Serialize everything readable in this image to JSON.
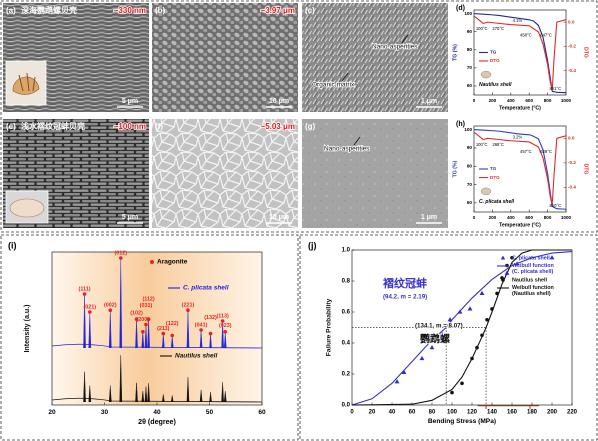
{
  "panels": [
    {
      "label": "(a)",
      "title": "深海鹦鹉螺贝壳",
      "measure": "~330 nm",
      "scale": "5 μm"
    },
    {
      "label": "(b)",
      "measure": "~3.97 μm",
      "scale": "10 μm"
    },
    {
      "label": "(c)",
      "annotations": [
        "Nano-asperities",
        "Organic matrix"
      ],
      "scale": "1 μm"
    },
    {
      "label": "(e)",
      "title": "浅水褶纹冠蚌贝壳",
      "measure": "~100 nm",
      "scale": "5 μm"
    },
    {
      "label": "(f)",
      "measure": "~5.03 μm",
      "scale": "10 μm"
    },
    {
      "label": "(g)",
      "annotations": [
        "Nano-asperities"
      ],
      "scale": "1 μm"
    }
  ],
  "chart_data": [
    {
      "type": "line",
      "label": "(d)",
      "xlabel": "Temperature (°C)",
      "ylabel": "TG (%)",
      "y2label": "DTG",
      "xlim": [
        0,
        1000
      ],
      "xticks": [
        0,
        200,
        400,
        600,
        800,
        1000
      ],
      "ylim": [
        55,
        102
      ],
      "yticks": [
        60,
        70,
        80,
        90,
        100
      ],
      "y2lim": [
        -0.6,
        0.1
      ],
      "y2ticks": [
        {
          "value": 0,
          "label": "0.0"
        },
        -0.2,
        -0.4
      ],
      "sample": "Nautilus shell",
      "annotations": [
        "4.1%",
        "100°C",
        "270°C",
        "458°C",
        "647°C",
        "851°C"
      ],
      "series": [
        {
          "name": "TG",
          "color": "#1d2a8c",
          "x": [
            0,
            100,
            200,
            270,
            400,
            458,
            600,
            647,
            700,
            750,
            800,
            851,
            900,
            1000
          ],
          "values": [
            100,
            99.7,
            99.3,
            99,
            98,
            97.6,
            96.6,
            95.9,
            93.5,
            87,
            74,
            57,
            56.5,
            56.3
          ]
        },
        {
          "name": "DTG",
          "color": "#e02a2a",
          "axis": "y2",
          "x": [
            0,
            50,
            100,
            150,
            270,
            400,
            600,
            700,
            750,
            800,
            830,
            851,
            870,
            900,
            1000
          ],
          "values": [
            0.05,
            0.02,
            -0.01,
            0,
            -0.01,
            -0.02,
            -0.03,
            -0.08,
            -0.18,
            -0.35,
            -0.5,
            -0.55,
            -0.3,
            0,
            0.02
          ]
        }
      ]
    },
    {
      "type": "line",
      "label": "(h)",
      "xlabel": "Temperature (°C)",
      "ylabel": "TG (%)",
      "y2label": "DTG",
      "xlim": [
        0,
        1000
      ],
      "xticks": [
        0,
        200,
        400,
        600,
        800,
        1000
      ],
      "ylim": [
        55,
        102
      ],
      "yticks": [
        60,
        70,
        80,
        90,
        100
      ],
      "y2lim": [
        -0.6,
        0.1
      ],
      "y2ticks": [
        {
          "value": 0,
          "label": "0.0"
        },
        -0.2,
        -0.4
      ],
      "sample": "C. plicata shell",
      "annotations": [
        "3.2%",
        "100°C",
        "268°C",
        "457°C",
        "628°C",
        "850°C"
      ],
      "series": [
        {
          "name": "TG",
          "color": "#2a3bd0",
          "x": [
            0,
            100,
            200,
            268,
            400,
            457,
            600,
            628,
            700,
            750,
            800,
            850,
            900,
            1000
          ],
          "values": [
            100,
            99.8,
            99.4,
            99.2,
            98.3,
            97.8,
            97.2,
            96.8,
            95,
            89,
            76,
            58,
            56.8,
            56.5
          ]
        },
        {
          "name": "DTG",
          "color": "#e02a2a",
          "axis": "y2",
          "x": [
            0,
            50,
            100,
            150,
            268,
            400,
            600,
            700,
            750,
            800,
            830,
            850,
            870,
            900,
            1000
          ],
          "values": [
            0.05,
            0.02,
            -0.01,
            0,
            -0.01,
            -0.02,
            -0.03,
            -0.07,
            -0.16,
            -0.33,
            -0.48,
            -0.54,
            -0.3,
            0,
            0.02
          ]
        }
      ]
    },
    {
      "type": "spectrum",
      "label": "(i)",
      "xlabel": "2θ (degree)",
      "ylabel": "Intensity (a.u.)",
      "xlim": [
        20,
        60
      ],
      "xticks": [
        20,
        30,
        40,
        50,
        60
      ],
      "ylim": [
        0,
        100
      ],
      "marker": {
        "name": "Aragonite",
        "color": "#e8231f"
      },
      "peak_labels": [
        "(111)",
        "(021)",
        "(002)",
        "(012)",
        "(102)",
        "(200)",
        "(031)",
        "(112)",
        "(211)",
        "(122)",
        "(221)",
        "(041)",
        "(132)",
        "(113)",
        "(023)"
      ],
      "series": [
        {
          "name": "C. plicata shell",
          "color": "#2424d8",
          "x": [
            26.2,
            27.2,
            31.1,
            33.1,
            36.1,
            37.3,
            37.9,
            38.4,
            41.2,
            42.9,
            45.9,
            48.4,
            50.2,
            52.5,
            53.0
          ],
          "values": [
            60,
            40,
            42,
            100,
            32,
            18,
            26,
            32,
            16,
            14,
            42,
            20,
            16,
            30,
            18
          ]
        },
        {
          "name": "Nautilus shell",
          "color": "#111111",
          "x": [
            26.2,
            27.2,
            31.1,
            33.1,
            36.1,
            37.3,
            37.9,
            38.4,
            41.2,
            42.9,
            45.9,
            48.4,
            50.2,
            52.5,
            53.0
          ],
          "values": [
            55,
            30,
            30,
            85,
            35,
            20,
            28,
            34,
            14,
            12,
            45,
            22,
            18,
            36,
            20
          ]
        }
      ]
    },
    {
      "type": "scatter",
      "label": "(j)",
      "xlabel": "Bending Stress (MPa)",
      "ylabel": "Failure Probability",
      "xlim": [
        0,
        220
      ],
      "xticks": [
        0,
        20,
        40,
        60,
        80,
        100,
        120,
        140,
        160,
        180,
        200,
        220
      ],
      "ylim": [
        0,
        1
      ],
      "yticks": [
        {
          "value": 0,
          "label": "0.0"
        },
        0.2,
        0.4,
        0.6,
        0.8,
        {
          "value": 1,
          "label": "1.0"
        }
      ],
      "reference": {
        "x": [
          94.2,
          134.1
        ],
        "y": 0.5
      },
      "annotations": [
        "褶纹冠蚌",
        "(94.2, m = 2.19)",
        "(134.1, m = 8.07)",
        "鹦鹉螺"
      ],
      "series": [
        {
          "name": "C. plicata shell",
          "kind": "scatter",
          "marker": "triangle",
          "color": "#2b2bd9",
          "x": [
            45,
            52,
            70,
            80,
            90,
            98,
            108,
            118,
            130,
            155,
            165,
            200
          ],
          "values": [
            0.15,
            0.21,
            0.3,
            0.37,
            0.46,
            0.55,
            0.6,
            0.62,
            0.72,
            0.85,
            0.91,
            0.95
          ]
        },
        {
          "name": "Weibull function (C. plicata shell)",
          "kind": "line",
          "color": "#3a32c8",
          "x": [
            0,
            20,
            40,
            60,
            80,
            94.2,
            100,
            120,
            140,
            160,
            180,
            200,
            220
          ],
          "values": [
            0,
            0.04,
            0.14,
            0.28,
            0.42,
            0.5,
            0.55,
            0.69,
            0.81,
            0.9,
            0.95,
            0.98,
            0.99
          ]
        },
        {
          "name": "Nautilus shell",
          "kind": "scatter",
          "marker": "circle",
          "color": "#111111",
          "x": [
            100,
            110,
            120,
            125,
            130,
            135,
            140,
            145,
            150,
            155,
            160
          ],
          "values": [
            0.08,
            0.14,
            0.3,
            0.37,
            0.45,
            0.55,
            0.62,
            0.72,
            0.82,
            0.9,
            0.95
          ]
        },
        {
          "name": "Weibull function (Nautilus shell)",
          "kind": "line",
          "color": "#111111",
          "x": [
            0,
            60,
            80,
            100,
            110,
            120,
            130,
            134.1,
            140,
            150,
            160,
            170,
            180,
            220
          ],
          "values": [
            0,
            0.005,
            0.03,
            0.1,
            0.18,
            0.3,
            0.44,
            0.5,
            0.6,
            0.78,
            0.92,
            0.98,
            1.0,
            1.0
          ]
        }
      ]
    }
  ]
}
